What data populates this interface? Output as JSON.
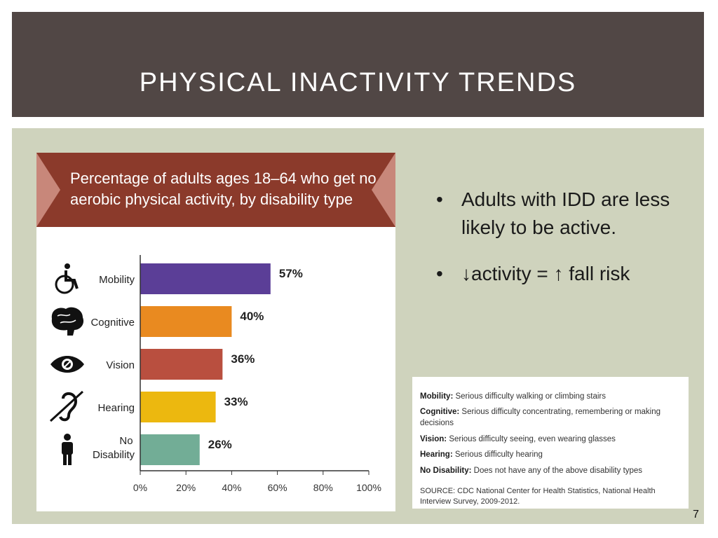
{
  "slide": {
    "title": "PHYSICAL INACTIVITY TRENDS",
    "page_number": "7"
  },
  "bullets": [
    {
      "text": "Adults with IDD are less likely to be active."
    },
    {
      "text": "↓activity = ↑ fall risk"
    }
  ],
  "chart_data": {
    "type": "bar",
    "orientation": "horizontal",
    "title": "Percentage of adults ages 18–64 who get no aerobic physical activity, by disability type",
    "categories": [
      "Mobility",
      "Cognitive",
      "Vision",
      "Hearing",
      "No Disability"
    ],
    "values": [
      57,
      40,
      36,
      33,
      26
    ],
    "value_labels": [
      "57%",
      "40%",
      "36%",
      "33%",
      "26%"
    ],
    "colors": [
      "#5b3e97",
      "#e98a20",
      "#b94f3f",
      "#ecb80f",
      "#72ad96"
    ],
    "icons": [
      "wheelchair-icon",
      "brain-icon",
      "eye-icon",
      "hearing-icon",
      "person-icon"
    ],
    "xlim": [
      0,
      100
    ],
    "xticks": [
      "0%",
      "20%",
      "40%",
      "60%",
      "80%",
      "100%"
    ],
    "grid": false
  },
  "definitions": [
    {
      "term": "Mobility:",
      "text": " Serious difficulty walking or climbing stairs"
    },
    {
      "term": "Cognitive:",
      "text": " Serious difficulty concentrating, remembering or making decisions"
    },
    {
      "term": "Vision:",
      "text": " Serious difficulty seeing, even wearing glasses"
    },
    {
      "term": "Hearing:",
      "text": " Serious difficulty hearing"
    },
    {
      "term": "No Disability:",
      "text": " Does not have any of the above disability types"
    }
  ],
  "source": "SOURCE: CDC National Center for Health Statistics, National Health Interview Survey, 2009-2012.",
  "colors": {
    "header_bg": "#514745",
    "content_bg": "#cfd3bd",
    "banner": "#8b3a2b"
  }
}
